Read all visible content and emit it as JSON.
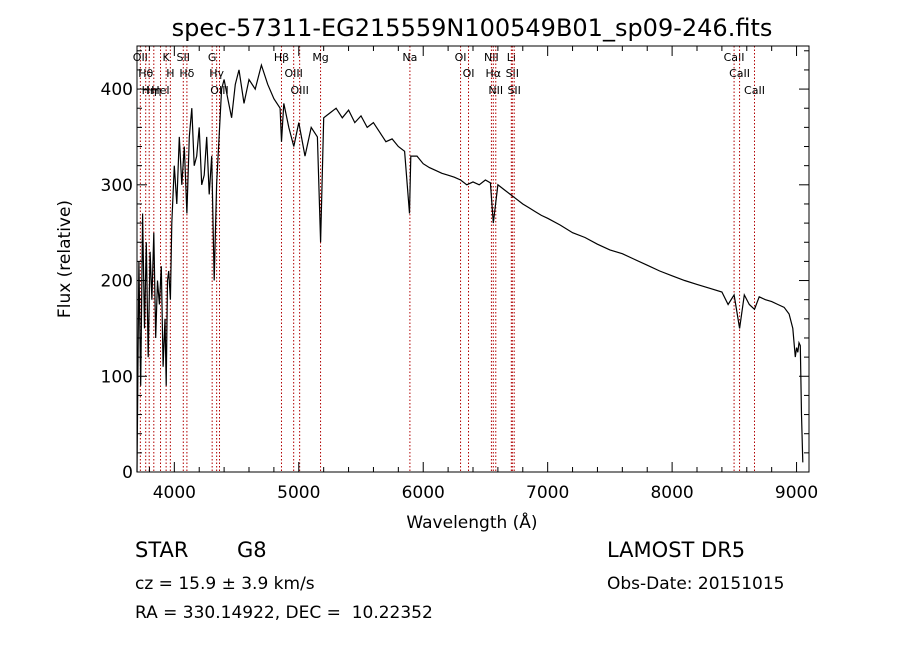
{
  "chart_data": {
    "type": "line",
    "title": "spec-57311-EG215559N100549B01_sp09-246.fits",
    "xlabel": "Wavelength (Å)",
    "ylabel": "Flux (relative)",
    "xlim": [
      3700,
      9100
    ],
    "ylim": [
      0,
      445
    ],
    "xticks": [
      4000,
      5000,
      6000,
      7000,
      8000,
      9000
    ],
    "yticks": [
      0,
      100,
      200,
      300,
      400
    ],
    "grid": false,
    "line_color": "#000000",
    "marker_color": "#b00000",
    "spectrum": {
      "x": [
        3700,
        3715,
        3730,
        3745,
        3760,
        3775,
        3790,
        3805,
        3820,
        3835,
        3850,
        3865,
        3880,
        3895,
        3910,
        3925,
        3935,
        3945,
        3955,
        3968,
        3980,
        4000,
        4020,
        4040,
        4060,
        4080,
        4101,
        4120,
        4140,
        4160,
        4180,
        4200,
        4220,
        4240,
        4260,
        4280,
        4300,
        4320,
        4340,
        4360,
        4380,
        4400,
        4430,
        4460,
        4490,
        4520,
        4560,
        4600,
        4650,
        4700,
        4750,
        4800,
        4850,
        4861,
        4880,
        4920,
        4960,
        5000,
        5050,
        5100,
        5150,
        5175,
        5200,
        5250,
        5300,
        5350,
        5400,
        5450,
        5500,
        5550,
        5600,
        5650,
        5700,
        5750,
        5800,
        5850,
        5890,
        5900,
        5950,
        6000,
        6050,
        6100,
        6150,
        6200,
        6250,
        6300,
        6350,
        6400,
        6450,
        6500,
        6540,
        6563,
        6600,
        6650,
        6700,
        6750,
        6800,
        6850,
        6900,
        6950,
        7000,
        7100,
        7200,
        7300,
        7400,
        7500,
        7600,
        7700,
        7800,
        7900,
        8000,
        8100,
        8200,
        8300,
        8400,
        8450,
        8498,
        8542,
        8580,
        8620,
        8662,
        8700,
        8750,
        8800,
        8850,
        8900,
        8940,
        8970,
        8990,
        9000,
        9010,
        9020,
        9030,
        9040,
        9050
      ],
      "y": [
        0,
        220,
        90,
        270,
        150,
        240,
        120,
        230,
        180,
        250,
        140,
        200,
        175,
        215,
        110,
        160,
        90,
        200,
        210,
        180,
        260,
        320,
        280,
        350,
        300,
        340,
        270,
        350,
        380,
        320,
        330,
        360,
        300,
        310,
        350,
        290,
        330,
        200,
        300,
        350,
        400,
        410,
        390,
        370,
        405,
        420,
        385,
        410,
        400,
        425,
        405,
        390,
        380,
        345,
        385,
        360,
        340,
        365,
        330,
        360,
        350,
        240,
        370,
        375,
        380,
        370,
        378,
        365,
        372,
        360,
        365,
        355,
        345,
        348,
        340,
        335,
        270,
        330,
        330,
        322,
        318,
        315,
        312,
        310,
        308,
        305,
        300,
        303,
        300,
        305,
        302,
        260,
        300,
        295,
        290,
        285,
        280,
        276,
        272,
        268,
        265,
        258,
        250,
        245,
        238,
        232,
        228,
        222,
        216,
        210,
        205,
        200,
        196,
        192,
        188,
        175,
        185,
        150,
        185,
        175,
        170,
        183,
        180,
        178,
        175,
        172,
        165,
        150,
        120,
        130,
        125,
        135,
        132,
        60,
        10
      ]
    },
    "line_markers": [
      {
        "x": 3727,
        "label": "OII"
      },
      {
        "x": 3770,
        "label": "Hθ"
      },
      {
        "x": 3798,
        "label": "Hη"
      },
      {
        "x": 3835,
        "label": "Hη"
      },
      {
        "x": 3889,
        "label": "HeI"
      },
      {
        "x": 3934,
        "label": "K"
      },
      {
        "x": 3968,
        "label": "H"
      },
      {
        "x": 4072,
        "label": "SII"
      },
      {
        "x": 4101,
        "label": "Hδ"
      },
      {
        "x": 4304,
        "label": "G"
      },
      {
        "x": 4340,
        "label": "Hγ"
      },
      {
        "x": 4363,
        "label": "OIII"
      },
      {
        "x": 4861,
        "label": "Hβ"
      },
      {
        "x": 4959,
        "label": "OIII"
      },
      {
        "x": 5007,
        "label": "OIII"
      },
      {
        "x": 5175,
        "label": "Mg"
      },
      {
        "x": 5893,
        "label": "Na"
      },
      {
        "x": 6300,
        "label": "OI"
      },
      {
        "x": 6364,
        "label": "OI"
      },
      {
        "x": 6548,
        "label": "NII"
      },
      {
        "x": 6563,
        "label": "Hα"
      },
      {
        "x": 6583,
        "label": "NII"
      },
      {
        "x": 6708,
        "label": "Li"
      },
      {
        "x": 6716,
        "label": "SII"
      },
      {
        "x": 6731,
        "label": "SII"
      },
      {
        "x": 8498,
        "label": "CaII"
      },
      {
        "x": 8542,
        "label": "CaII"
      },
      {
        "x": 8662,
        "label": "CaII"
      }
    ]
  },
  "footer": {
    "object_class": "STAR",
    "subclass": "G8",
    "survey": "LAMOST DR5",
    "redshift": "cz = 15.9 ± 3.9 km/s",
    "obs_date": "Obs-Date: 20151015",
    "coordinates": "RA = 330.14922, DEC =  10.22352"
  }
}
